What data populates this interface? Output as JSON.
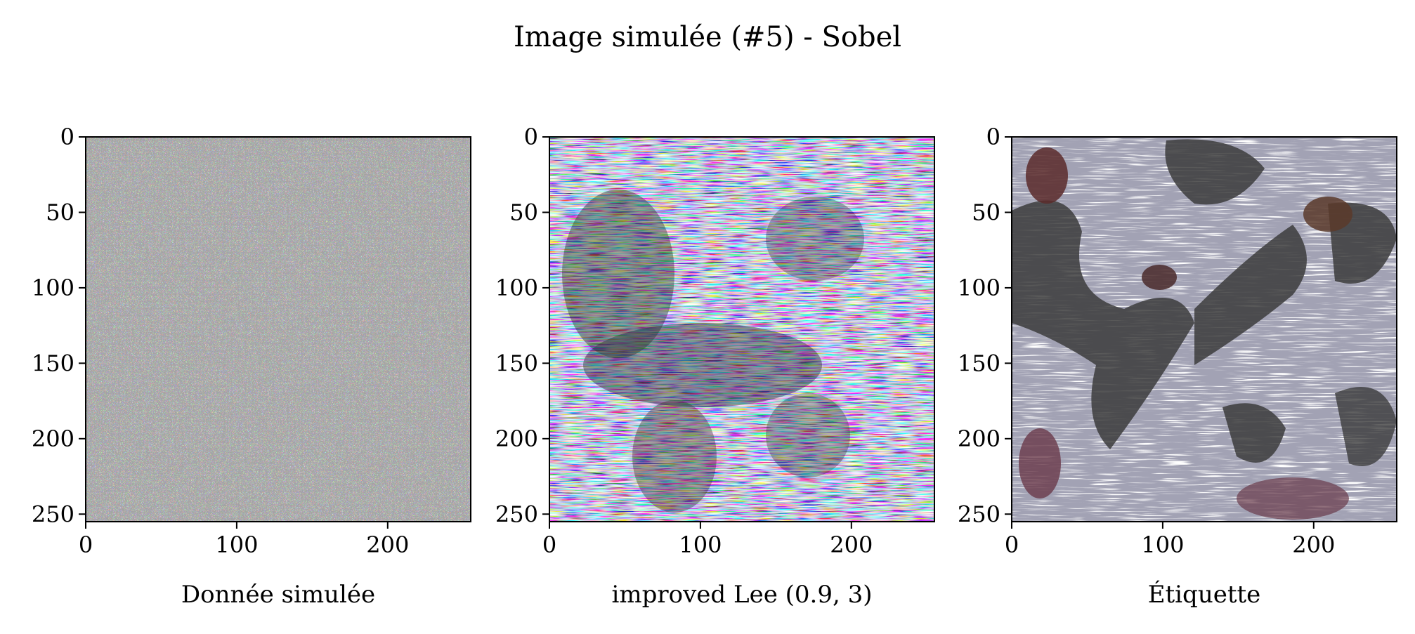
{
  "figure": {
    "title": "Image simulée (#5) - Sobel"
  },
  "panels": [
    {
      "xlabel": "Donnée simulée",
      "x_ticks": [
        0,
        100,
        200
      ],
      "y_ticks": [
        0,
        50,
        100,
        150,
        200,
        250
      ],
      "x_range": [
        0,
        255
      ],
      "y_range": [
        0,
        255
      ],
      "texture": "noise"
    },
    {
      "xlabel": "improved Lee (0.9, 3)",
      "x_ticks": [
        0,
        100,
        200
      ],
      "y_ticks": [
        0,
        50,
        100,
        150,
        200,
        250
      ],
      "x_range": [
        0,
        255
      ],
      "y_range": [
        0,
        255
      ],
      "texture": "filtered"
    },
    {
      "xlabel": "Étiquette",
      "x_ticks": [
        0,
        100,
        200
      ],
      "y_ticks": [
        0,
        50,
        100,
        150,
        200,
        250
      ],
      "x_range": [
        0,
        255
      ],
      "y_range": [
        0,
        255
      ],
      "texture": "label"
    }
  ],
  "colors": {
    "magenta": "#ff00ff",
    "cyan": "#00ffff",
    "yellow": "#ffff00",
    "dark": "#1a1a2a",
    "gray": "#6a6a6a"
  }
}
